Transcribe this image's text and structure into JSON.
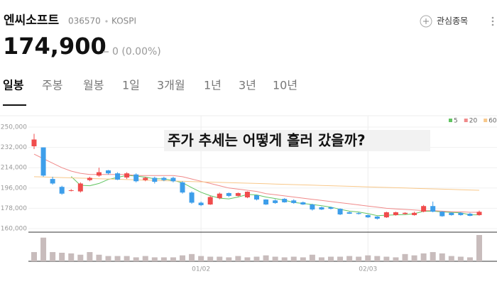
{
  "header": {
    "name": "엔씨소프트",
    "code": "036570",
    "market": "KOSPI",
    "watch_button": "관심종목",
    "price": "174,900",
    "change": "0 (0.00%)"
  },
  "tabs": [
    "일봉",
    "주봉",
    "월봉",
    "1일",
    "3개월",
    "1년",
    "3년",
    "10년"
  ],
  "chart_data": {
    "type": "candlestick",
    "annotation": "주가 추세는 어떻게 흘러 갔을까?",
    "categories": [
      null,
      null,
      null,
      null,
      null,
      null,
      null,
      null,
      null,
      null,
      null,
      null,
      null,
      null,
      null,
      null,
      null,
      null,
      "01/02",
      null,
      null,
      null,
      null,
      null,
      null,
      null,
      null,
      null,
      null,
      null,
      null,
      null,
      null,
      null,
      null,
      null,
      "02/03",
      null,
      null,
      null,
      null,
      null,
      null,
      null,
      null,
      null,
      null,
      null,
      null
    ],
    "open": [
      233000,
      232000,
      204000,
      197000,
      193500,
      193000,
      203000,
      207000,
      211600,
      209000,
      205300,
      208000,
      203000,
      205000,
      205000,
      205000,
      201000,
      192000,
      183000,
      181400,
      187000,
      191500,
      189000,
      187700,
      189600,
      185800,
      185000,
      186400,
      185000,
      183300,
      181400,
      178900,
      178900,
      177600,
      174500,
      173800,
      172000,
      170700,
      170000,
      172000,
      173000,
      172000,
      175000,
      180000,
      175000,
      174000,
      174000,
      173200,
      172000
    ],
    "high": [
      244000,
      232000,
      206000,
      198000,
      195000,
      201000,
      206000,
      214000,
      212000,
      210000,
      210000,
      209000,
      206000,
      206000,
      206000,
      206000,
      202000,
      193000,
      184000,
      189000,
      192000,
      192000,
      192000,
      193000,
      190000,
      186000,
      186000,
      187000,
      186000,
      184000,
      182000,
      179500,
      179500,
      178000,
      175000,
      174500,
      172500,
      171000,
      175000,
      175000,
      174500,
      175000,
      181000,
      184000,
      175500,
      174500,
      174500,
      174000,
      176000
    ],
    "low": [
      230500,
      206000,
      199000,
      190000,
      193000,
      192000,
      202000,
      206000,
      208000,
      203000,
      204000,
      201000,
      202000,
      200000,
      202000,
      201000,
      191000,
      182000,
      180000,
      181000,
      186000,
      188000,
      188500,
      187000,
      185000,
      181000,
      182000,
      183000,
      182000,
      181000,
      176000,
      176500,
      177000,
      172000,
      173000,
      172500,
      169500,
      168000,
      169500,
      171500,
      172500,
      171500,
      174500,
      174500,
      170500,
      171500,
      171500,
      171000,
      171500
    ],
    "close": [
      239000,
      207000,
      200000,
      191000,
      194000,
      200000,
      205000,
      210000,
      209000,
      203400,
      209000,
      202000,
      205000,
      201500,
      203000,
      202000,
      192000,
      183000,
      180800,
      188000,
      191000,
      189000,
      191500,
      192700,
      185800,
      181400,
      182700,
      183300,
      182700,
      181400,
      177000,
      177000,
      177600,
      172600,
      173200,
      173000,
      170000,
      168800,
      174500,
      174500,
      174000,
      174000,
      180000,
      175000,
      171000,
      172000,
      172000,
      171300,
      174900
    ],
    "volume": [
      14,
      36,
      14,
      13,
      12,
      10,
      14,
      10,
      8,
      8,
      8,
      6,
      8,
      6,
      6,
      6,
      9,
      11,
      8,
      7,
      7,
      6,
      8,
      6,
      7,
      9,
      7,
      6,
      7,
      6,
      10,
      6,
      7,
      7,
      8,
      7,
      9,
      8,
      7,
      6,
      11,
      9,
      12,
      14,
      12,
      8,
      7,
      6,
      40
    ],
    "up_color": "#f04c4c",
    "down_color": "#3d9eea",
    "volume_color": "#c8bcbc",
    "series": [
      {
        "name": "5",
        "color": "#62c462",
        "values": [
          null,
          null,
          null,
          null,
          206200,
          198400,
          198000,
          200000,
          203600,
          205400,
          207200,
          206600,
          205600,
          204100,
          204100,
          202700,
          200700,
          196300,
          192200,
          189200,
          187000,
          186400,
          188000,
          190300,
          189900,
          188000,
          186700,
          185200,
          183200,
          182300,
          181400,
          180300,
          179100,
          177100,
          175500,
          174700,
          173300,
          171500,
          171900,
          172200,
          172400,
          173200,
          175400,
          175500,
          174800,
          174400,
          174000,
          172300,
          172200
        ]
      },
      {
        "name": "20",
        "color": "#f08a8a",
        "values": [
          226000,
          222000,
          218000,
          214000,
          211000,
          209000,
          208000,
          208000,
          208000,
          208000,
          208000,
          207000,
          207000,
          207000,
          207000,
          207000,
          206000,
          204000,
          202000,
          200000,
          198000,
          196000,
          195000,
          194000,
          193000,
          191000,
          190000,
          189000,
          188000,
          187000,
          186000,
          185000,
          184000,
          183000,
          182000,
          181000,
          180000,
          179000,
          178000,
          177500,
          177000,
          176500,
          176000,
          176000,
          175500,
          175000,
          175000,
          174500,
          174500
        ]
      },
      {
        "name": "60",
        "color": "#f8c88a",
        "values": [
          206000,
          205750,
          205500,
          205250,
          205000,
          204750,
          204500,
          204250,
          204000,
          203750,
          203500,
          203250,
          203000,
          202750,
          202500,
          202250,
          202000,
          201750,
          201500,
          201250,
          201000,
          200750,
          200500,
          200250,
          200000,
          199750,
          199500,
          199250,
          199000,
          198750,
          198500,
          198250,
          198000,
          197750,
          197500,
          197250,
          197000,
          196750,
          196500,
          196250,
          196000,
          195750,
          195500,
          195250,
          195000,
          194750,
          194500,
          194250,
          194000
        ]
      }
    ],
    "ylim": [
      160000,
      250000
    ],
    "yticks": [
      {
        "value": 250000,
        "label": "250,000"
      },
      {
        "value": 232000,
        "label": "232,000"
      },
      {
        "value": 214000,
        "label": "214,000"
      },
      {
        "value": 196000,
        "label": "196,000"
      },
      {
        "value": 178000,
        "label": "178,000"
      },
      {
        "value": 160000,
        "label": "160,000"
      }
    ],
    "grid": true
  }
}
